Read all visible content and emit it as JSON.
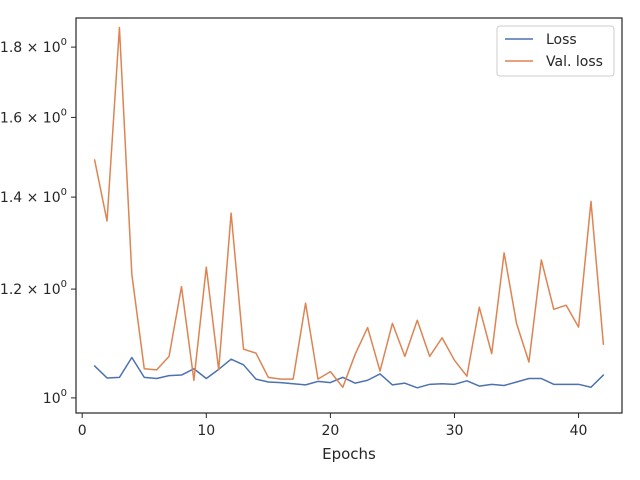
{
  "chart_data": {
    "type": "line",
    "title": "",
    "xlabel": "Epochs",
    "ylabel": "",
    "xlim": [
      -0.5,
      43.5
    ],
    "ylim": [
      0.975,
      1.89
    ],
    "y_scale": "log",
    "x_ticks": [
      0,
      10,
      20,
      30,
      40
    ],
    "x_tick_labels": [
      "0",
      "10",
      "20",
      "30",
      "40"
    ],
    "y_ticks": [
      1.0,
      1.2,
      1.4,
      1.6,
      1.8
    ],
    "y_tick_labels": [
      {
        "base": "10",
        "exp": "0",
        "prefix": ""
      },
      {
        "base": "10",
        "exp": "0",
        "prefix": "1.2 × "
      },
      {
        "base": "10",
        "exp": "0",
        "prefix": "1.4 × "
      },
      {
        "base": "10",
        "exp": "0",
        "prefix": "1.6 × "
      },
      {
        "base": "10",
        "exp": "0",
        "prefix": "1.8 × "
      }
    ],
    "grid": false,
    "legend_position": "top-right",
    "x": [
      1,
      2,
      3,
      4,
      5,
      6,
      7,
      8,
      9,
      10,
      11,
      12,
      13,
      14,
      15,
      16,
      17,
      18,
      19,
      20,
      21,
      22,
      23,
      24,
      25,
      26,
      27,
      28,
      29,
      30,
      31,
      32,
      33,
      34,
      35,
      36,
      37,
      38,
      39,
      40,
      41,
      42
    ],
    "series": [
      {
        "name": "Loss",
        "color": "#4c72b0",
        "values": [
          1.055,
          1.034,
          1.035,
          1.07,
          1.035,
          1.033,
          1.038,
          1.039,
          1.05,
          1.033,
          1.049,
          1.067,
          1.057,
          1.032,
          1.027,
          1.026,
          1.024,
          1.022,
          1.028,
          1.026,
          1.035,
          1.025,
          1.03,
          1.041,
          1.022,
          1.025,
          1.017,
          1.023,
          1.024,
          1.023,
          1.029,
          1.02,
          1.023,
          1.021,
          1.027,
          1.033,
          1.033,
          1.023,
          1.023,
          1.023,
          1.018,
          1.039
        ]
      },
      {
        "name": "Val. loss",
        "color": "#dd8452",
        "values": [
          1.49,
          1.345,
          1.86,
          1.23,
          1.05,
          1.048,
          1.072,
          1.205,
          1.03,
          1.245,
          1.048,
          1.363,
          1.085,
          1.078,
          1.035,
          1.032,
          1.032,
          1.172,
          1.032,
          1.045,
          1.018,
          1.076,
          1.125,
          1.046,
          1.133,
          1.072,
          1.139,
          1.072,
          1.106,
          1.065,
          1.037,
          1.164,
          1.077,
          1.275,
          1.133,
          1.062,
          1.26,
          1.16,
          1.168,
          1.126,
          1.39,
          1.094
        ]
      }
    ]
  }
}
